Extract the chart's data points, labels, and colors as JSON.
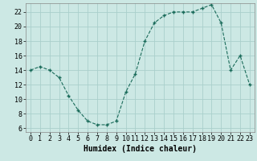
{
  "x": [
    0,
    1,
    2,
    3,
    4,
    5,
    6,
    7,
    8,
    9,
    10,
    11,
    12,
    13,
    14,
    15,
    16,
    17,
    18,
    19,
    20,
    21,
    22,
    23
  ],
  "y": [
    14,
    14.5,
    14,
    13,
    10.5,
    8.5,
    7,
    6.5,
    6.5,
    7,
    11,
    13.5,
    18,
    20.5,
    21.5,
    22,
    22,
    22,
    22.5,
    23,
    20.5,
    14,
    16,
    12
  ],
  "line_color": "#1a6b5a",
  "marker_color": "#1a6b5a",
  "bg_color": "#cce8e4",
  "grid_color_major": "#aacfcc",
  "grid_color_minor": "#aacfcc",
  "xlabel": "Humidex (Indice chaleur)",
  "xlim": [
    -0.5,
    23.5
  ],
  "ylim": [
    5.5,
    23.2
  ],
  "yticks": [
    6,
    8,
    10,
    12,
    14,
    16,
    18,
    20,
    22
  ],
  "xticks": [
    0,
    1,
    2,
    3,
    4,
    5,
    6,
    7,
    8,
    9,
    10,
    11,
    12,
    13,
    14,
    15,
    16,
    17,
    18,
    19,
    20,
    21,
    22,
    23
  ],
  "xlabel_fontsize": 7,
  "tick_fontsize": 6
}
